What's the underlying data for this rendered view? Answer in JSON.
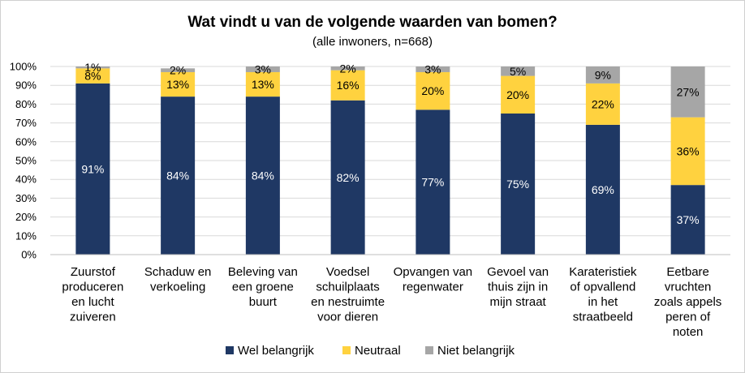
{
  "chart_data": {
    "type": "bar",
    "stacked": true,
    "title": "Wat vindt u van de volgende waarden van bomen?",
    "subtitle": "(alle inwoners, n=668)",
    "ylim": [
      0,
      100
    ],
    "yticks": [
      "0%",
      "10%",
      "20%",
      "30%",
      "40%",
      "50%",
      "60%",
      "70%",
      "80%",
      "90%",
      "100%"
    ],
    "grid": true,
    "legend_position": "bottom",
    "categories": [
      [
        "Zuurstof",
        "produceren",
        "en lucht",
        "zuiveren"
      ],
      [
        "Schaduw en",
        "verkoeling"
      ],
      [
        "Beleving van",
        "een groene",
        "buurt"
      ],
      [
        "Voedsel",
        "schuilplaats",
        "en nestruimte",
        "voor dieren"
      ],
      [
        "Opvangen van",
        "regenwater"
      ],
      [
        "Gevoel van",
        "thuis zijn in",
        "mijn straat"
      ],
      [
        "Karateristiek",
        "of opvallend",
        "in het",
        "straatbeeld"
      ],
      [
        "Eetbare",
        "vruchten",
        "zoals appels",
        "peren of",
        "noten"
      ]
    ],
    "series": [
      {
        "name": "Wel belangrijk",
        "color": "#1f3864",
        "label_color": "#ffffff",
        "values": [
          91,
          84,
          84,
          82,
          77,
          75,
          69,
          37
        ],
        "labels": [
          "91%",
          "84%",
          "84%",
          "82%",
          "77%",
          "75%",
          "69%",
          "37%"
        ]
      },
      {
        "name": "Neutraal",
        "color": "#ffd23f",
        "label_color": "#000000",
        "values": [
          8,
          13,
          13,
          16,
          20,
          20,
          22,
          36
        ],
        "labels": [
          "8%",
          "13%",
          "13%",
          "16%",
          "20%",
          "20%",
          "22%",
          "36%"
        ]
      },
      {
        "name": "Niet belangrijk",
        "color": "#a6a6a6",
        "label_color": "#000000",
        "values": [
          1,
          2,
          3,
          2,
          3,
          5,
          9,
          27
        ],
        "labels": [
          "1%",
          "2%",
          "3%",
          "2%",
          "3%",
          "5%",
          "9%",
          "27%"
        ]
      }
    ]
  }
}
